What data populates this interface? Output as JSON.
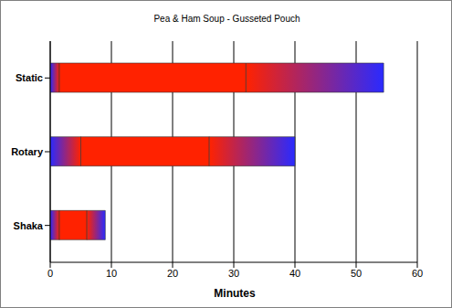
{
  "chart_data": {
    "type": "bar",
    "title": "Pea & Ham Soup - Gusseted Pouch",
    "orientation": "horizontal",
    "stacked": true,
    "categories": [
      "Static",
      "Rotary",
      "Shaka"
    ],
    "series": [
      {
        "color": "#2a2aff",
        "values": [
          1.5,
          5,
          1.5
        ]
      },
      {
        "color": "#ff2200",
        "values": [
          30.5,
          21,
          4.5
        ]
      },
      {
        "color": "#2a2aff",
        "values": [
          22.5,
          14,
          3
        ]
      }
    ],
    "xlabel": "Minutes",
    "xlim": [
      0,
      60
    ],
    "xticks": [
      0,
      10,
      20,
      30,
      40,
      50,
      60
    ],
    "grid": true
  }
}
